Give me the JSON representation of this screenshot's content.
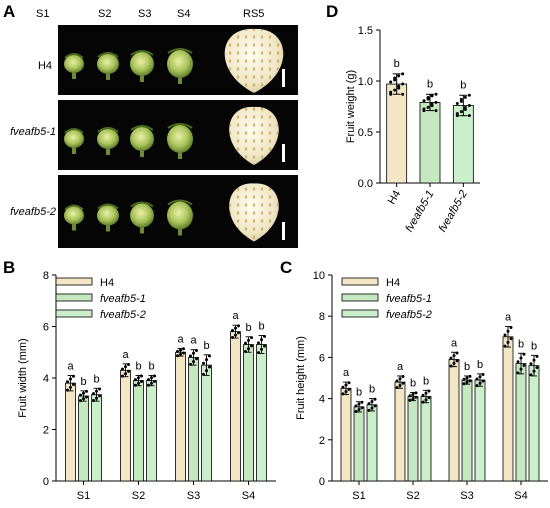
{
  "figure": {
    "panels": {
      "a": "A",
      "b": "B",
      "c": "C",
      "d": "D"
    },
    "photo": {
      "stages": [
        "S1",
        "S2",
        "S3",
        "S4",
        "RS5"
      ],
      "genotypes": [
        "H4",
        "fveafb5-1",
        "fveafb5-2"
      ]
    }
  },
  "colors": {
    "H4": "#f2e6c4",
    "fveafb5-1": "#c6e8c0",
    "fveafb5-2": "#cbeecb"
  },
  "chart_data": [
    {
      "type": "bar",
      "panel": "B",
      "ylabel": "Fruit width (mm)",
      "xlabel": "",
      "ylim": [
        0,
        8
      ],
      "yticks": [
        0,
        2,
        4,
        6,
        8
      ],
      "categories": [
        "S1",
        "S2",
        "S3",
        "S4"
      ],
      "legend": "top-left",
      "series": [
        {
          "name": "H4",
          "values": [
            3.8,
            4.3,
            5.0,
            5.8
          ],
          "errors": [
            0.3,
            0.25,
            0.15,
            0.25
          ],
          "letters": [
            "a",
            "a",
            "a",
            "a"
          ]
        },
        {
          "name": "fveafb5-1",
          "values": [
            3.3,
            3.9,
            4.8,
            5.3
          ],
          "errors": [
            0.2,
            0.2,
            0.3,
            0.3
          ],
          "letters": [
            "b",
            "b",
            "a",
            "b"
          ]
        },
        {
          "name": "fveafb5-2",
          "values": [
            3.35,
            3.9,
            4.5,
            5.3
          ],
          "errors": [
            0.25,
            0.2,
            0.4,
            0.35
          ],
          "letters": [
            "b",
            "b",
            "b",
            "b"
          ]
        }
      ]
    },
    {
      "type": "bar",
      "panel": "C",
      "ylabel": "Fruit height (mm)",
      "xlabel": "",
      "ylim": [
        0,
        10
      ],
      "yticks": [
        0,
        2,
        4,
        6,
        8,
        10
      ],
      "categories": [
        "S1",
        "S2",
        "S3",
        "S4"
      ],
      "legend": "top-left",
      "series": [
        {
          "name": "H4",
          "values": [
            4.5,
            4.8,
            5.9,
            7.0
          ],
          "errors": [
            0.3,
            0.3,
            0.35,
            0.5
          ],
          "letters": [
            "a",
            "a",
            "a",
            "a"
          ]
        },
        {
          "name": "fveafb5-1",
          "values": [
            3.6,
            4.1,
            4.9,
            5.7
          ],
          "errors": [
            0.25,
            0.2,
            0.2,
            0.5
          ],
          "letters": [
            "b",
            "b",
            "b",
            "b"
          ]
        },
        {
          "name": "fveafb5-2",
          "values": [
            3.7,
            4.1,
            4.9,
            5.6
          ],
          "errors": [
            0.3,
            0.3,
            0.3,
            0.5
          ],
          "letters": [
            "b",
            "b",
            "b",
            "b"
          ]
        }
      ]
    },
    {
      "type": "bar",
      "panel": "D",
      "ylabel": "Fruit weight (g)",
      "xlabel": "",
      "ylim": [
        0,
        1.5
      ],
      "yticks": [
        "0.0",
        "0.5",
        "1.0",
        "1.5"
      ],
      "categories": [
        "H4",
        "fveafb5-1",
        "fveafb5-2"
      ],
      "values": [
        0.97,
        0.79,
        0.76
      ],
      "errors": [
        0.1,
        0.08,
        0.1
      ],
      "letters": [
        "b",
        "b",
        "b"
      ]
    }
  ]
}
